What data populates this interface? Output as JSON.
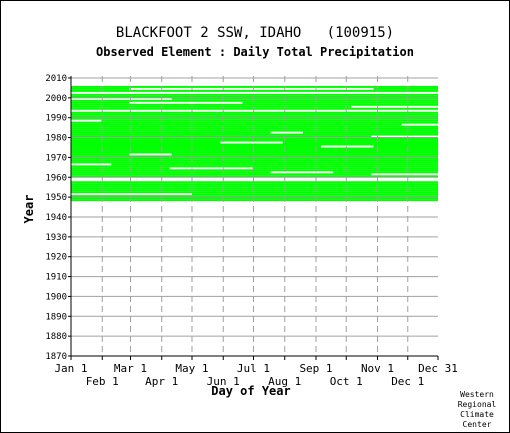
{
  "chart_data": {
    "type": "heatmap",
    "title": "BLACKFOOT 2 SSW, IDAHO   (100915)",
    "subtitle": "Observed Element : Daily Total Precipitation",
    "xlabel": "Day of Year",
    "ylabel": "Year",
    "x_ticks_top": [
      "Jan 1",
      "Mar 1",
      "May 1",
      "Jul 1",
      "Sep 1",
      "Nov 1",
      "Dec 31"
    ],
    "x_ticks_bottom": [
      "Feb 1",
      "Apr 1",
      "Jun 1",
      "Aug 1",
      "Oct 1",
      "Dec 1"
    ],
    "x_tick_days_top": [
      1,
      60,
      121,
      182,
      244,
      305,
      365
    ],
    "x_tick_days_bottom": [
      32,
      91,
      152,
      213,
      274,
      335
    ],
    "y_ticks": [
      1870,
      1880,
      1890,
      1900,
      1910,
      1920,
      1930,
      1940,
      1950,
      1960,
      1970,
      1980,
      1990,
      2000,
      2010
    ],
    "xlim": [
      1,
      365
    ],
    "ylim": [
      1870,
      2011
    ],
    "data_color": "#00ff00",
    "coverage": {
      "first_year": 1948,
      "last_year": 2005,
      "missing_full_years": [
        1958,
        1959,
        1993,
        2002
      ],
      "gaps": [
        {
          "year": 1951,
          "start_day": 1,
          "end_day": 120
        },
        {
          "year": 1961,
          "start_day": 300,
          "end_day": 365
        },
        {
          "year": 1962,
          "start_day": 200,
          "end_day": 260
        },
        {
          "year": 1964,
          "start_day": 100,
          "end_day": 180
        },
        {
          "year": 1966,
          "start_day": 1,
          "end_day": 40
        },
        {
          "year": 1971,
          "start_day": 60,
          "end_day": 100
        },
        {
          "year": 1975,
          "start_day": 250,
          "end_day": 300
        },
        {
          "year": 1977,
          "start_day": 150,
          "end_day": 210
        },
        {
          "year": 1980,
          "start_day": 300,
          "end_day": 365
        },
        {
          "year": 1982,
          "start_day": 200,
          "end_day": 230
        },
        {
          "year": 1986,
          "start_day": 330,
          "end_day": 365
        },
        {
          "year": 1988,
          "start_day": 1,
          "end_day": 30
        },
        {
          "year": 1995,
          "start_day": 280,
          "end_day": 365
        },
        {
          "year": 1997,
          "start_day": 60,
          "end_day": 170
        },
        {
          "year": 1999,
          "start_day": 1,
          "end_day": 100
        },
        {
          "year": 2004,
          "start_day": 60,
          "end_day": 300
        }
      ]
    },
    "credit": "Western\nRegional\nClimate\nCenter"
  }
}
